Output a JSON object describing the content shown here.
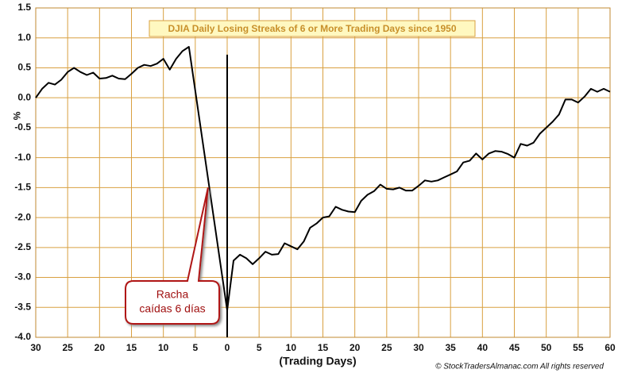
{
  "chart_data": {
    "type": "line",
    "title": "DJIA Daily Losing Streaks of 6 or More Trading Days since 1950",
    "xlabel": "(Trading Days)",
    "ylabel": "%",
    "source": "© StockTradersAlmanac.com All rights reserved",
    "annotation": {
      "lines": [
        "Racha",
        "caídas 6 días"
      ],
      "x": -3,
      "y": -1.5
    },
    "reference_line": {
      "x": 0,
      "ymax": 0.72
    },
    "x": [
      -30,
      -29,
      -28,
      -27,
      -26,
      -25,
      -24,
      -23,
      -22,
      -21,
      -20,
      -19,
      -18,
      -17,
      -16,
      -15,
      -14,
      -13,
      -12,
      -11,
      -10,
      -9,
      -8,
      -7,
      -6,
      -5,
      -4,
      -3,
      -2,
      -1,
      0,
      1,
      2,
      3,
      4,
      5,
      6,
      7,
      8,
      9,
      10,
      11,
      12,
      13,
      14,
      15,
      16,
      17,
      18,
      19,
      20,
      21,
      22,
      23,
      24,
      25,
      26,
      27,
      28,
      29,
      30,
      31,
      32,
      33,
      34,
      35,
      36,
      37,
      38,
      39,
      40,
      41,
      42,
      43,
      44,
      45,
      46,
      47,
      48,
      49,
      50,
      51,
      52,
      53,
      54,
      55,
      56,
      57,
      58,
      59,
      60
    ],
    "series": [
      {
        "name": "DJIA",
        "color": "#000000",
        "values": [
          0.0,
          0.15,
          0.25,
          0.22,
          0.3,
          0.43,
          0.5,
          0.43,
          0.38,
          0.42,
          0.32,
          0.33,
          0.37,
          0.32,
          0.31,
          0.4,
          0.5,
          0.55,
          0.53,
          0.57,
          0.65,
          0.47,
          0.65,
          0.78,
          0.85,
          0.12,
          -0.62,
          -1.35,
          -2.08,
          -2.82,
          -3.55,
          -2.72,
          -2.62,
          -2.68,
          -2.78,
          -2.68,
          -2.57,
          -2.62,
          -2.61,
          -2.43,
          -2.48,
          -2.53,
          -2.4,
          -2.17,
          -2.1,
          -2.0,
          -1.98,
          -1.82,
          -1.87,
          -1.9,
          -1.91,
          -1.72,
          -1.62,
          -1.56,
          -1.45,
          -1.52,
          -1.53,
          -1.5,
          -1.55,
          -1.55,
          -1.47,
          -1.38,
          -1.4,
          -1.38,
          -1.33,
          -1.28,
          -1.23,
          -1.08,
          -1.05,
          -0.93,
          -1.03,
          -0.93,
          -0.89,
          -0.9,
          -0.94,
          -1.0,
          -0.77,
          -0.8,
          -0.75,
          -0.6,
          -0.5,
          -0.4,
          -0.28,
          -0.03,
          -0.03,
          -0.08,
          0.02,
          0.15,
          0.1,
          0.15,
          0.1
        ]
      }
    ],
    "xlim": [
      -30,
      60
    ],
    "xticks": [
      {
        "value": -30,
        "label": "30"
      },
      {
        "value": -25,
        "label": "25"
      },
      {
        "value": -20,
        "label": "20"
      },
      {
        "value": -15,
        "label": "15"
      },
      {
        "value": -10,
        "label": "10"
      },
      {
        "value": -5,
        "label": "5"
      },
      0,
      5,
      10,
      15,
      20,
      25,
      30,
      35,
      40,
      45,
      50,
      55,
      60
    ],
    "ylim": [
      -4.0,
      1.5
    ],
    "yticks": [
      1.5,
      {
        "value": 1,
        "label": "1.0"
      },
      0.5,
      {
        "value": 0,
        "label": "0.0"
      },
      -0.5,
      {
        "value": -1,
        "label": "-1.0"
      },
      -1.5,
      {
        "value": -2,
        "label": "-2.0"
      },
      -2.5,
      {
        "value": -3,
        "label": "-3.0"
      },
      -3.5,
      {
        "value": -4,
        "label": "-4.0"
      }
    ],
    "grid": true,
    "grid_color": "#d9a040"
  }
}
